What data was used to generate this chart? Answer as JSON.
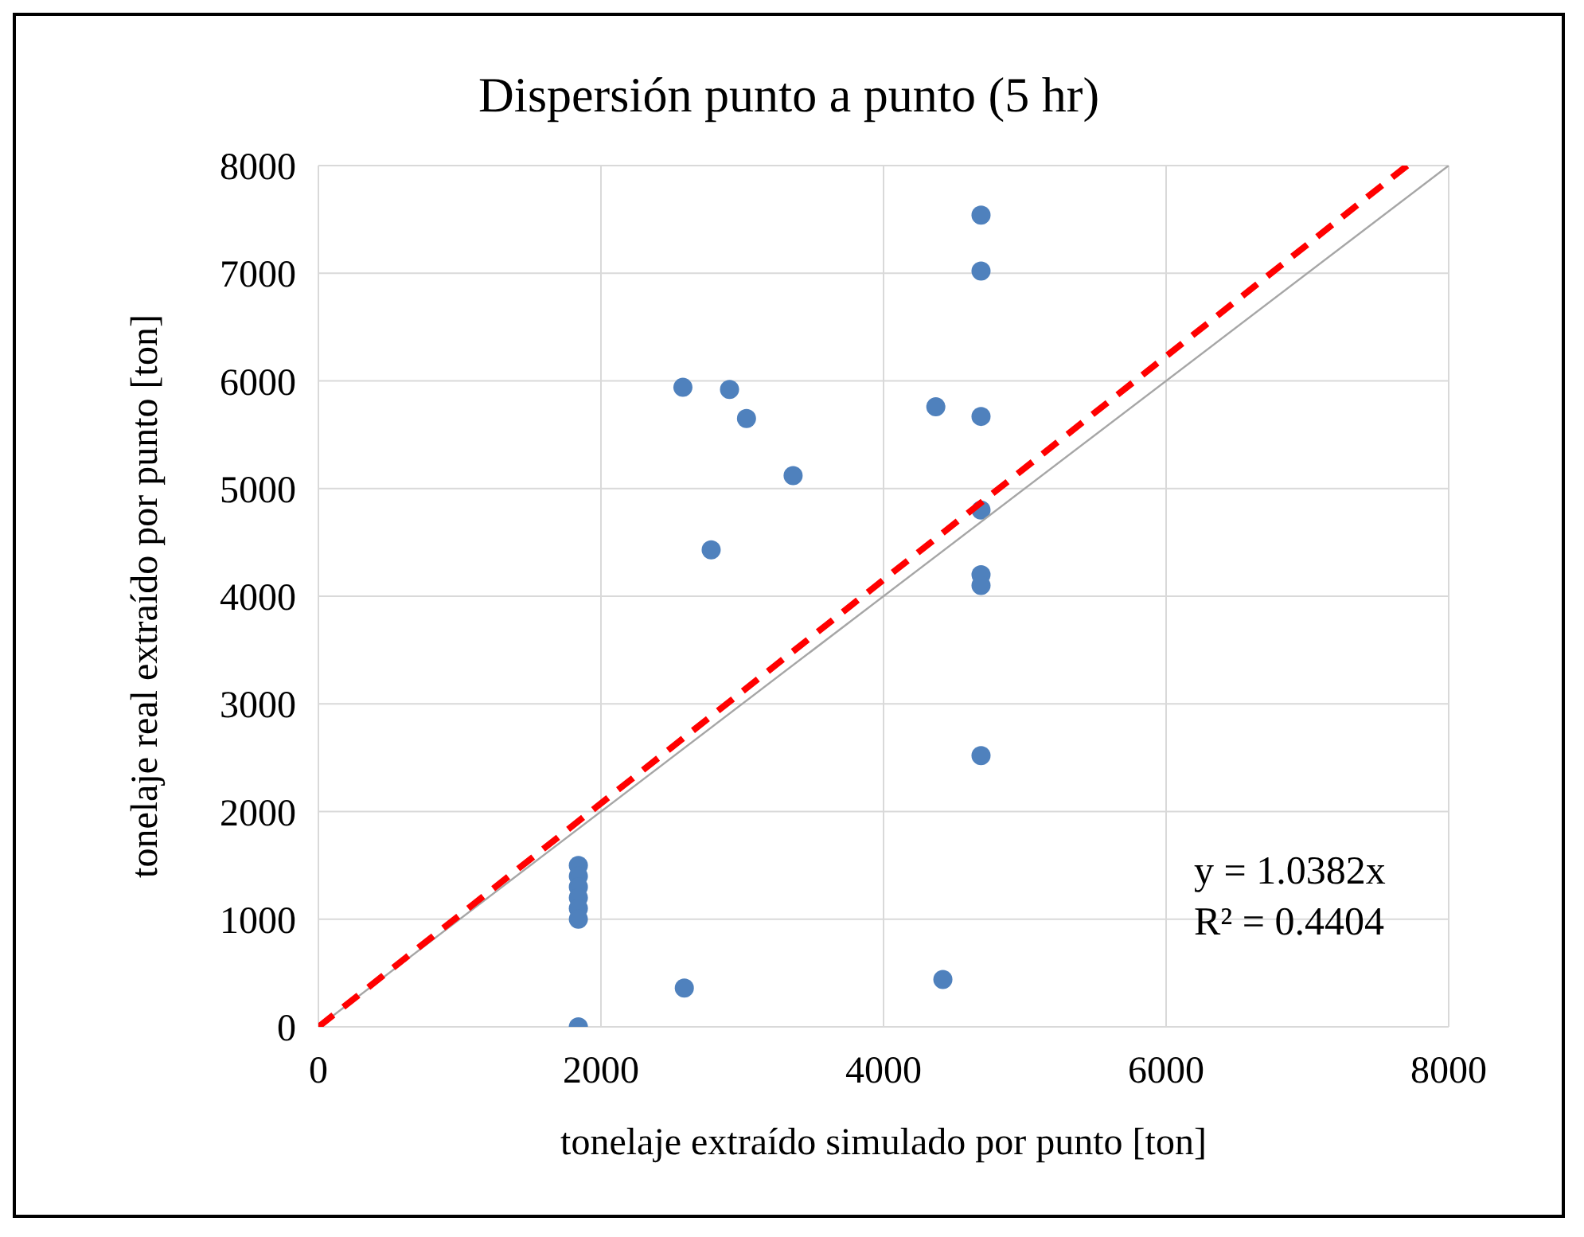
{
  "chart_data": {
    "type": "scatter",
    "title": "Dispersión punto a punto (5 hr)",
    "xlabel": "tonelaje extraído simulado por punto [ton]",
    "ylabel": "tonelaje real extraído por punto [ton]",
    "xlim": [
      0,
      8000
    ],
    "ylim": [
      0,
      8000
    ],
    "xticks": [
      0,
      2000,
      4000,
      6000,
      8000
    ],
    "yticks": [
      0,
      1000,
      2000,
      3000,
      4000,
      5000,
      6000,
      7000,
      8000
    ],
    "grid": true,
    "legend": false,
    "marker": "circle",
    "series": [
      {
        "type": "scatter",
        "color": "#4f81bd",
        "x": [
          2580,
          2910,
          3030,
          3360,
          2780,
          4690,
          4690,
          4370,
          4690,
          4690,
          4690,
          4690,
          4690,
          4420,
          1840,
          1840,
          1840,
          1840,
          1840,
          1840,
          1840,
          2590
        ],
        "values": [
          5940,
          5920,
          5650,
          5120,
          4430,
          7540,
          7020,
          5760,
          5670,
          4800,
          4200,
          4100,
          2520,
          440,
          1500,
          1400,
          1300,
          1200,
          1100,
          1000,
          0,
          360
        ]
      },
      {
        "type": "line",
        "color": "#a6a6a6",
        "line_style": "solid",
        "marker": "none",
        "x": [
          0,
          8000
        ],
        "values": [
          0,
          8000
        ]
      },
      {
        "type": "line",
        "color": "#ff0000",
        "line_style": "dashed",
        "marker": "none",
        "x": [
          0,
          7706
        ],
        "values": [
          0,
          8000
        ]
      }
    ],
    "annotations": [
      "y = 1.0382x",
      "R² = 0.4404"
    ]
  }
}
